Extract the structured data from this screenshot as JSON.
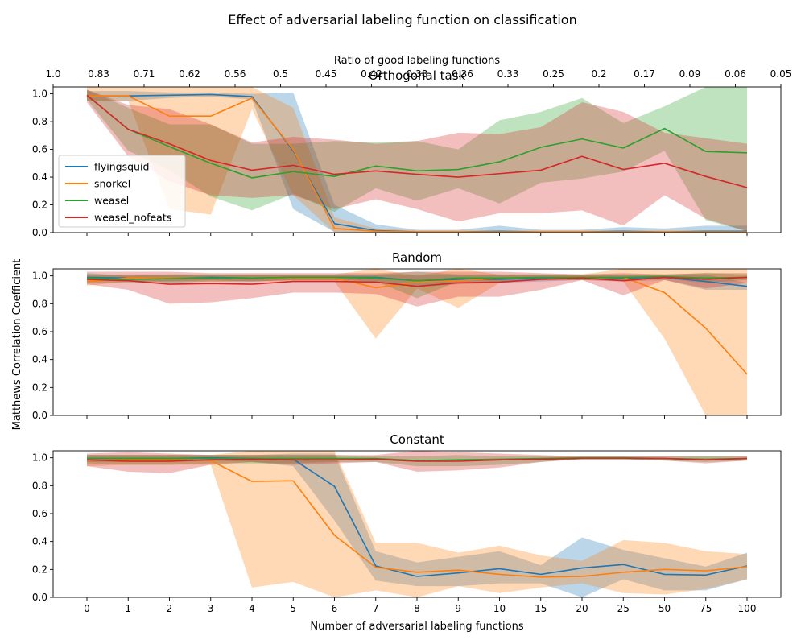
{
  "chart_data": {
    "type": "line",
    "title": "Effect of adversarial labeling function on classification",
    "xlabel": "Number of adversarial labeling functions",
    "ylabel": "Matthews Correlation Coefficient",
    "secondary_xlabel": "Ratio of good labeling functions",
    "x_categories": [
      "0",
      "1",
      "2",
      "3",
      "4",
      "5",
      "6",
      "7",
      "8",
      "9",
      "10",
      "15",
      "20",
      "25",
      "50",
      "75",
      "100"
    ],
    "top_ticks": [
      "1.0",
      "0.83",
      "0.71",
      "0.62",
      "0.56",
      "0.5",
      "0.45",
      "0.42",
      "0.38",
      "0.36",
      "0.33",
      "0.25",
      "0.2",
      "0.17",
      "0.09",
      "0.06",
      "0.05"
    ],
    "yticks": [
      "0.0",
      "0.2",
      "0.4",
      "0.6",
      "0.8",
      "1.0"
    ],
    "ylim": [
      0,
      1.05
    ],
    "grid": false,
    "legend": {
      "placement": "left",
      "entries": [
        "flyingsquid",
        "snorkel",
        "weasel",
        "weasel_nofeats"
      ]
    },
    "series_colors": {
      "flyingsquid": "#1f77b4",
      "snorkel": "#ff7f0e",
      "weasel": "#2ca02c",
      "weasel_nofeats": "#d62728"
    },
    "panels": [
      {
        "title": "Orthogonal task",
        "series": [
          {
            "name": "flyingsquid",
            "values": [
              0.985,
              0.985,
              0.99,
              0.995,
              0.98,
              0.59,
              0.065,
              0.015,
              0.005,
              0.005,
              0.01,
              0.005,
              0.005,
              0.01,
              0.005,
              0.01,
              0.01
            ],
            "lower": [
              0.95,
              0.95,
              0.97,
              0.98,
              0.96,
              0.17,
              0.005,
              0.0,
              0.0,
              0.0,
              0.0,
              0.0,
              0.0,
              0.0,
              0.0,
              0.0,
              0.0
            ],
            "upper": [
              1.02,
              1.02,
              1.01,
              1.01,
              1.0,
              1.01,
              0.2,
              0.06,
              0.02,
              0.02,
              0.05,
              0.02,
              0.02,
              0.04,
              0.03,
              0.05,
              0.05
            ]
          },
          {
            "name": "snorkel",
            "values": [
              0.985,
              0.985,
              0.84,
              0.84,
              0.97,
              0.6,
              0.03,
              0.01,
              0.005,
              0.005,
              0.005,
              0.005,
              0.005,
              0.005,
              0.005,
              0.005,
              0.005
            ],
            "lower": [
              0.95,
              0.95,
              0.17,
              0.13,
              0.89,
              0.27,
              0.0,
              0.0,
              0.0,
              0.0,
              0.0,
              0.0,
              0.0,
              0.0,
              0.0,
              0.0,
              0.0
            ],
            "upper": [
              1.05,
              1.05,
              1.05,
              1.05,
              1.05,
              0.9,
              0.11,
              0.03,
              0.015,
              0.015,
              0.015,
              0.015,
              0.015,
              0.015,
              0.015,
              0.015,
              0.015
            ]
          },
          {
            "name": "weasel",
            "values": [
              0.99,
              0.745,
              0.62,
              0.5,
              0.395,
              0.44,
              0.405,
              0.48,
              0.445,
              0.455,
              0.51,
              0.615,
              0.675,
              0.61,
              0.75,
              0.585,
              0.575
            ],
            "lower": [
              0.96,
              0.59,
              0.45,
              0.26,
              0.16,
              0.28,
              0.15,
              0.32,
              0.23,
              0.32,
              0.21,
              0.36,
              0.39,
              0.44,
              0.59,
              0.09,
              0.01
            ],
            "upper": [
              1.03,
              0.9,
              0.78,
              0.78,
              0.64,
              0.64,
              0.66,
              0.65,
              0.66,
              0.6,
              0.81,
              0.87,
              0.97,
              0.79,
              0.91,
              1.05,
              1.05
            ]
          },
          {
            "name": "weasel_nofeats",
            "values": [
              0.99,
              0.745,
              0.64,
              0.52,
              0.45,
              0.485,
              0.42,
              0.445,
              0.42,
              0.4,
              0.425,
              0.45,
              0.55,
              0.455,
              0.5,
              0.405,
              0.325
            ],
            "lower": [
              0.94,
              0.55,
              0.37,
              0.27,
              0.25,
              0.27,
              0.17,
              0.24,
              0.17,
              0.08,
              0.14,
              0.14,
              0.16,
              0.05,
              0.27,
              0.1,
              0.01
            ],
            "upper": [
              1.03,
              0.92,
              0.89,
              0.78,
              0.65,
              0.69,
              0.67,
              0.64,
              0.66,
              0.72,
              0.71,
              0.76,
              0.94,
              0.87,
              0.72,
              0.68,
              0.64
            ]
          }
        ]
      },
      {
        "title": "Random",
        "series": [
          {
            "name": "flyingsquid",
            "values": [
              0.99,
              0.985,
              0.985,
              0.99,
              0.985,
              0.99,
              0.99,
              0.99,
              0.965,
              0.975,
              0.975,
              0.985,
              0.99,
              0.985,
              0.99,
              0.96,
              0.925
            ],
            "lower": [
              0.97,
              0.96,
              0.96,
              0.97,
              0.96,
              0.97,
              0.97,
              0.96,
              0.92,
              0.94,
              0.95,
              0.96,
              0.97,
              0.96,
              0.97,
              0.9,
              0.9
            ],
            "upper": [
              1.01,
              1.01,
              1.01,
              1.01,
              1.01,
              1.01,
              1.01,
              1.01,
              1.01,
              1.01,
              1.01,
              1.01,
              1.01,
              1.01,
              1.01,
              1.01,
              0.95
            ]
          },
          {
            "name": "snorkel",
            "values": [
              0.96,
              0.985,
              0.985,
              0.985,
              0.985,
              0.985,
              0.985,
              0.915,
              0.955,
              0.965,
              0.985,
              0.99,
              0.99,
              0.99,
              0.88,
              0.625,
              0.295
            ],
            "lower": [
              0.93,
              0.96,
              0.96,
              0.96,
              0.96,
              0.96,
              0.96,
              0.55,
              0.91,
              0.77,
              0.95,
              0.97,
              0.97,
              0.96,
              0.55,
              0.0,
              0.0
            ],
            "upper": [
              1.0,
              1.01,
              1.01,
              1.01,
              1.01,
              1.01,
              1.01,
              1.05,
              1.0,
              1.05,
              1.01,
              1.01,
              1.01,
              1.05,
              1.05,
              1.05,
              1.05
            ]
          },
          {
            "name": "weasel",
            "values": [
              0.985,
              0.975,
              0.98,
              0.985,
              0.985,
              0.99,
              0.99,
              0.985,
              0.965,
              0.985,
              0.985,
              0.99,
              0.99,
              0.99,
              0.995,
              0.985,
              0.99
            ],
            "lower": [
              0.95,
              0.95,
              0.95,
              0.96,
              0.96,
              0.97,
              0.97,
              0.96,
              0.84,
              0.96,
              0.96,
              0.97,
              0.97,
              0.97,
              0.98,
              0.95,
              0.97
            ],
            "upper": [
              1.02,
              1.0,
              1.01,
              1.01,
              1.01,
              1.01,
              1.01,
              1.01,
              1.03,
              1.01,
              1.01,
              1.01,
              1.01,
              1.01,
              1.01,
              1.02,
              1.01
            ]
          },
          {
            "name": "weasel_nofeats",
            "values": [
              0.975,
              0.965,
              0.94,
              0.945,
              0.94,
              0.96,
              0.96,
              0.955,
              0.925,
              0.95,
              0.955,
              0.975,
              0.985,
              0.965,
              0.99,
              0.975,
              0.99
            ],
            "lower": [
              0.94,
              0.9,
              0.8,
              0.81,
              0.84,
              0.88,
              0.88,
              0.87,
              0.78,
              0.85,
              0.85,
              0.9,
              0.97,
              0.86,
              0.97,
              0.91,
              0.95
            ],
            "upper": [
              1.03,
              1.03,
              1.03,
              1.02,
              1.02,
              1.02,
              1.02,
              1.02,
              1.03,
              1.03,
              1.03,
              1.02,
              1.01,
              1.02,
              1.01,
              1.02,
              1.02
            ]
          }
        ]
      },
      {
        "title": "Constant",
        "series": [
          {
            "name": "flyingsquid",
            "values": [
              0.995,
              0.995,
              0.995,
              1.0,
              0.995,
              0.99,
              0.795,
              0.225,
              0.15,
              0.175,
              0.205,
              0.165,
              0.21,
              0.235,
              0.165,
              0.16,
              0.225
            ],
            "lower": [
              0.97,
              0.97,
              0.97,
              0.98,
              0.97,
              0.94,
              0.55,
              0.12,
              0.08,
              0.08,
              0.1,
              0.1,
              0.0,
              0.13,
              0.05,
              0.05,
              0.13
            ],
            "upper": [
              1.02,
              1.02,
              1.02,
              1.02,
              1.02,
              1.03,
              1.03,
              0.33,
              0.25,
              0.29,
              0.33,
              0.23,
              0.43,
              0.34,
              0.28,
              0.22,
              0.32
            ]
          },
          {
            "name": "snorkel",
            "values": [
              0.98,
              0.985,
              0.985,
              0.98,
              0.83,
              0.835,
              0.445,
              0.215,
              0.18,
              0.195,
              0.165,
              0.145,
              0.15,
              0.18,
              0.2,
              0.19,
              0.22
            ],
            "lower": [
              0.94,
              0.95,
              0.95,
              0.95,
              0.07,
              0.11,
              0.0,
              0.05,
              0.0,
              0.08,
              0.03,
              0.07,
              0.1,
              0.03,
              0.02,
              0.06,
              0.13
            ],
            "upper": [
              1.02,
              1.02,
              1.02,
              1.02,
              1.05,
              1.05,
              1.05,
              0.39,
              0.39,
              0.32,
              0.37,
              0.3,
              0.26,
              0.41,
              0.39,
              0.33,
              0.31
            ]
          },
          {
            "name": "weasel",
            "values": [
              0.995,
              0.995,
              0.995,
              0.995,
              0.995,
              0.995,
              0.995,
              0.995,
              0.98,
              0.985,
              0.99,
              0.995,
              1.0,
              1.0,
              0.995,
              0.99,
              0.995
            ],
            "lower": [
              0.96,
              0.95,
              0.95,
              0.96,
              0.96,
              0.96,
              0.97,
              0.97,
              0.94,
              0.94,
              0.95,
              0.97,
              0.99,
              0.99,
              0.98,
              0.97,
              0.98
            ],
            "upper": [
              1.02,
              1.02,
              1.02,
              1.02,
              1.02,
              1.02,
              1.02,
              1.01,
              1.01,
              1.02,
              1.01,
              1.01,
              1.01,
              1.01,
              1.01,
              1.01,
              1.01
            ]
          },
          {
            "name": "weasel_nofeats",
            "values": [
              0.985,
              0.975,
              0.975,
              0.985,
              0.99,
              0.985,
              0.985,
              0.99,
              0.975,
              0.975,
              0.985,
              0.99,
              0.995,
              0.995,
              0.995,
              0.985,
              0.995
            ],
            "lower": [
              0.94,
              0.9,
              0.89,
              0.95,
              0.97,
              0.95,
              0.96,
              0.97,
              0.9,
              0.91,
              0.93,
              0.97,
              0.99,
              0.99,
              0.98,
              0.96,
              0.98
            ],
            "upper": [
              1.03,
              1.04,
              1.03,
              1.02,
              1.02,
              1.02,
              1.02,
              1.02,
              1.05,
              1.04,
              1.03,
              1.02,
              1.01,
              1.01,
              1.01,
              1.01,
              1.01
            ]
          }
        ]
      }
    ]
  }
}
